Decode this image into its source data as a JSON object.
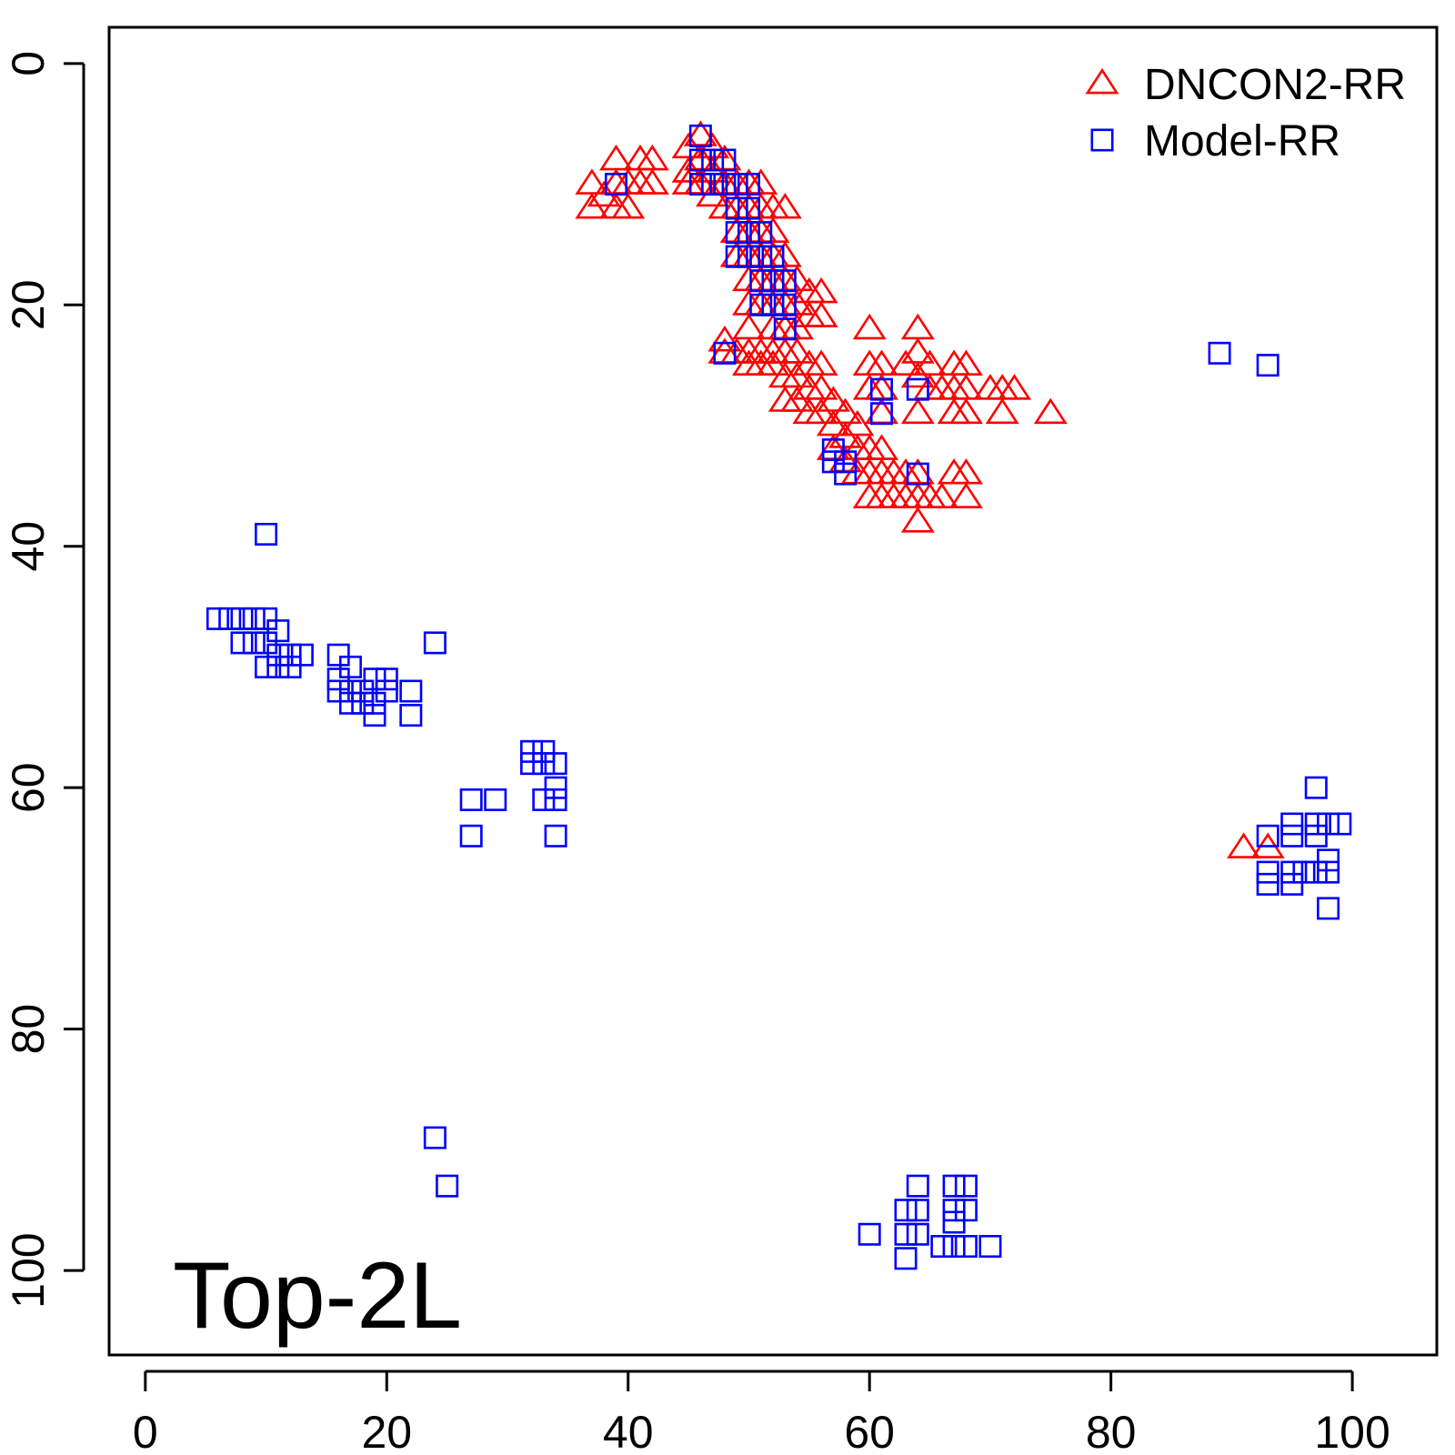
{
  "chart_data": {
    "type": "scatter",
    "title": "",
    "xlabel": "",
    "ylabel": "",
    "xlim": [
      -3,
      107
    ],
    "ylim": [
      -3,
      107
    ],
    "y_reversed": true,
    "x_ticks": [
      0,
      20,
      40,
      60,
      80,
      100
    ],
    "y_ticks": [
      0,
      20,
      40,
      60,
      80,
      100
    ],
    "grid": false,
    "legend_position": "top-right",
    "annotation": "Top-2L",
    "series": [
      {
        "name": "DNCON2-RR",
        "marker": "triangle-open",
        "color": "#ff0000",
        "points": [
          [
            37,
            10
          ],
          [
            37,
            12
          ],
          [
            38,
            11
          ],
          [
            39,
            8
          ],
          [
            39,
            10
          ],
          [
            39,
            12
          ],
          [
            40,
            10
          ],
          [
            40,
            12
          ],
          [
            41,
            8
          ],
          [
            41,
            10
          ],
          [
            42,
            8
          ],
          [
            42,
            10
          ],
          [
            45,
            7
          ],
          [
            45,
            9
          ],
          [
            45,
            10
          ],
          [
            46,
            6
          ],
          [
            46,
            8
          ],
          [
            46,
            10
          ],
          [
            47,
            7
          ],
          [
            47,
            9
          ],
          [
            47,
            11
          ],
          [
            48,
            8
          ],
          [
            48,
            10
          ],
          [
            48,
            12
          ],
          [
            49,
            10
          ],
          [
            49,
            12
          ],
          [
            49,
            14
          ],
          [
            49,
            16
          ],
          [
            50,
            10
          ],
          [
            50,
            12
          ],
          [
            50,
            14
          ],
          [
            50,
            16
          ],
          [
            50,
            18
          ],
          [
            50,
            20
          ],
          [
            51,
            10
          ],
          [
            51,
            12
          ],
          [
            51,
            14
          ],
          [
            51,
            16
          ],
          [
            51,
            18
          ],
          [
            51,
            20
          ],
          [
            52,
            12
          ],
          [
            52,
            14
          ],
          [
            52,
            16
          ],
          [
            52,
            18
          ],
          [
            52,
            20
          ],
          [
            52,
            22
          ],
          [
            53,
            12
          ],
          [
            53,
            16
          ],
          [
            53,
            18
          ],
          [
            53,
            20
          ],
          [
            53,
            22
          ],
          [
            54,
            18
          ],
          [
            54,
            20
          ],
          [
            54,
            22
          ],
          [
            55,
            19
          ],
          [
            55,
            21
          ],
          [
            56,
            19
          ],
          [
            56,
            21
          ],
          [
            48,
            23
          ],
          [
            48,
            24
          ],
          [
            49,
            24
          ],
          [
            50,
            22
          ],
          [
            50,
            24
          ],
          [
            50,
            25
          ],
          [
            51,
            24
          ],
          [
            51,
            25
          ],
          [
            52,
            24
          ],
          [
            52,
            25
          ],
          [
            53,
            22
          ],
          [
            53,
            24
          ],
          [
            53,
            26
          ],
          [
            53,
            28
          ],
          [
            54,
            24
          ],
          [
            54,
            26
          ],
          [
            54,
            28
          ],
          [
            55,
            25
          ],
          [
            55,
            27
          ],
          [
            55,
            29
          ],
          [
            56,
            25
          ],
          [
            56,
            27
          ],
          [
            56,
            29
          ],
          [
            57,
            28
          ],
          [
            57,
            30
          ],
          [
            57,
            32
          ],
          [
            58,
            29
          ],
          [
            58,
            31
          ],
          [
            58,
            33
          ],
          [
            59,
            30
          ],
          [
            59,
            32
          ],
          [
            59,
            34
          ],
          [
            60,
            22
          ],
          [
            60,
            25
          ],
          [
            60,
            27
          ],
          [
            60,
            32
          ],
          [
            60,
            34
          ],
          [
            60,
            36
          ],
          [
            61,
            25
          ],
          [
            61,
            27
          ],
          [
            61,
            29
          ],
          [
            61,
            32
          ],
          [
            61,
            34
          ],
          [
            61,
            36
          ],
          [
            62,
            34
          ],
          [
            62,
            36
          ],
          [
            63,
            25
          ],
          [
            63,
            34
          ],
          [
            63,
            36
          ],
          [
            64,
            22
          ],
          [
            64,
            24
          ],
          [
            64,
            26
          ],
          [
            64,
            29
          ],
          [
            64,
            34
          ],
          [
            64,
            36
          ],
          [
            64,
            38
          ],
          [
            65,
            25
          ],
          [
            65,
            27
          ],
          [
            65,
            36
          ],
          [
            66,
            27
          ],
          [
            66,
            36
          ],
          [
            67,
            25
          ],
          [
            67,
            27
          ],
          [
            67,
            29
          ],
          [
            67,
            34
          ],
          [
            68,
            25
          ],
          [
            68,
            27
          ],
          [
            68,
            29
          ],
          [
            68,
            34
          ],
          [
            68,
            36
          ],
          [
            70,
            27
          ],
          [
            71,
            27
          ],
          [
            71,
            29
          ],
          [
            72,
            27
          ],
          [
            75,
            29
          ],
          [
            91,
            65
          ],
          [
            93,
            65
          ]
        ]
      },
      {
        "name": "Model-RR",
        "marker": "square-open",
        "color": "#0000ff",
        "points": [
          [
            39,
            10
          ],
          [
            46,
            6
          ],
          [
            46,
            8
          ],
          [
            46,
            10
          ],
          [
            47,
            8
          ],
          [
            47,
            10
          ],
          [
            48,
            8
          ],
          [
            48,
            10
          ],
          [
            49,
            10
          ],
          [
            49,
            12
          ],
          [
            49,
            14
          ],
          [
            49,
            16
          ],
          [
            50,
            10
          ],
          [
            50,
            12
          ],
          [
            50,
            14
          ],
          [
            50,
            16
          ],
          [
            51,
            14
          ],
          [
            51,
            16
          ],
          [
            51,
            18
          ],
          [
            51,
            20
          ],
          [
            52,
            16
          ],
          [
            52,
            18
          ],
          [
            52,
            20
          ],
          [
            53,
            18
          ],
          [
            53,
            20
          ],
          [
            53,
            22
          ],
          [
            48,
            24
          ],
          [
            61,
            27
          ],
          [
            61,
            29
          ],
          [
            64,
            27
          ],
          [
            57,
            32
          ],
          [
            57,
            33
          ],
          [
            58,
            33
          ],
          [
            58,
            34
          ],
          [
            64,
            34
          ],
          [
            89,
            24
          ],
          [
            93,
            25
          ],
          [
            10,
            39
          ],
          [
            6,
            46
          ],
          [
            7,
            46
          ],
          [
            8,
            46
          ],
          [
            8,
            48
          ],
          [
            9,
            46
          ],
          [
            9,
            48
          ],
          [
            10,
            46
          ],
          [
            10,
            48
          ],
          [
            10,
            50
          ],
          [
            11,
            47
          ],
          [
            11,
            49
          ],
          [
            11,
            50
          ],
          [
            12,
            49
          ],
          [
            12,
            50
          ],
          [
            13,
            49
          ],
          [
            16,
            49
          ],
          [
            16,
            51
          ],
          [
            16,
            52
          ],
          [
            17,
            50
          ],
          [
            17,
            52
          ],
          [
            17,
            53
          ],
          [
            18,
            52
          ],
          [
            18,
            53
          ],
          [
            19,
            51
          ],
          [
            19,
            53
          ],
          [
            19,
            54
          ],
          [
            20,
            51
          ],
          [
            20,
            52
          ],
          [
            22,
            52
          ],
          [
            22,
            54
          ],
          [
            24,
            48
          ],
          [
            27,
            61
          ],
          [
            27,
            64
          ],
          [
            29,
            61
          ],
          [
            32,
            57
          ],
          [
            32,
            58
          ],
          [
            33,
            57
          ],
          [
            33,
            58
          ],
          [
            33,
            61
          ],
          [
            34,
            58
          ],
          [
            34,
            60
          ],
          [
            34,
            61
          ],
          [
            34,
            64
          ],
          [
            24,
            89
          ],
          [
            25,
            93
          ],
          [
            60,
            97
          ],
          [
            63,
            95
          ],
          [
            63,
            97
          ],
          [
            63,
            99
          ],
          [
            64,
            93
          ],
          [
            64,
            95
          ],
          [
            64,
            97
          ],
          [
            66,
            98
          ],
          [
            67,
            93
          ],
          [
            67,
            95
          ],
          [
            67,
            96
          ],
          [
            67,
            98
          ],
          [
            68,
            93
          ],
          [
            68,
            95
          ],
          [
            68,
            98
          ],
          [
            70,
            98
          ],
          [
            93,
            64
          ],
          [
            93,
            67
          ],
          [
            93,
            68
          ],
          [
            95,
            63
          ],
          [
            95,
            64
          ],
          [
            95,
            67
          ],
          [
            95,
            68
          ],
          [
            96,
            67
          ],
          [
            97,
            60
          ],
          [
            97,
            63
          ],
          [
            97,
            64
          ],
          [
            97,
            67
          ],
          [
            98,
            63
          ],
          [
            98,
            66
          ],
          [
            98,
            67
          ],
          [
            98,
            70
          ],
          [
            99,
            63
          ]
        ]
      }
    ]
  }
}
